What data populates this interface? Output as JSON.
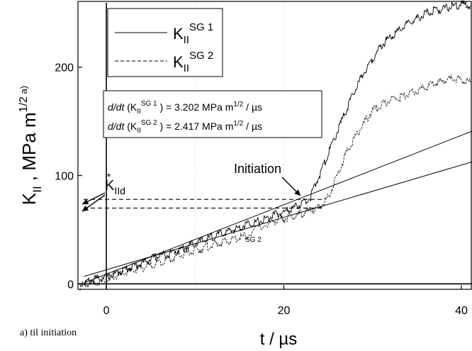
{
  "chart_data": {
    "type": "line",
    "xlabel": "t / µs",
    "ylabel_main": "K",
    "ylabel_sub": "II",
    "ylabel_unit": "MPa m",
    "ylabel_exp": "1/2",
    "ylabel_tag": "a)",
    "xlim": [
      -3.2,
      41.2
    ],
    "ylim": [
      -5,
      262
    ],
    "x_ticks": [
      0,
      20,
      40
    ],
    "y_ticks": [
      0,
      100,
      200
    ],
    "legend": [
      {
        "main": "K",
        "sub": "II",
        "sup": "SG 1",
        "style": "solid"
      },
      {
        "main": "K",
        "sub": "II",
        "sup": "SG 2",
        "style": "dashed"
      }
    ],
    "rate_annotations": [
      {
        "prefix": "d/dt",
        "open": " (K",
        "sub": "II",
        "sup": "SG 1",
        "rest": "  ) = 3.202 MPa m",
        "exp": "1/2",
        "tail": " / µs"
      },
      {
        "prefix": "d/dt",
        "open": " (K",
        "sub": "II",
        "sup": "SG 2",
        "rest": "  ) = 2.417 MPa m",
        "exp": "1/2",
        "tail": " / µs"
      }
    ],
    "kiid": {
      "main": "K",
      "sub": "IId",
      "sup": "*"
    },
    "initiation_label": "Initiation",
    "sg2_label": "SG 2",
    "fit_lines": [
      {
        "name": "SG 1",
        "slope": 3.202,
        "intercept": 9
      },
      {
        "name": "SG 2",
        "slope": 2.417,
        "intercept": 13
      }
    ],
    "threshold_levels": [
      78,
      70
    ],
    "series": [
      {
        "name": "SG 1",
        "style": "solid",
        "x": [
          -3,
          -2,
          -1,
          0,
          1,
          2,
          3,
          4,
          5,
          6,
          7,
          8,
          9,
          10,
          11,
          12,
          13,
          14,
          15,
          16,
          17,
          18,
          19,
          20,
          21,
          22,
          23,
          24,
          25,
          26,
          27,
          28,
          29,
          30,
          31,
          32,
          33,
          34,
          35,
          36,
          37,
          38,
          39,
          40,
          41
        ],
        "y": [
          0,
          2,
          5,
          6,
          9,
          13,
          16,
          19,
          23,
          26,
          28,
          31,
          34,
          38,
          40,
          44,
          46,
          49,
          52,
          56,
          57,
          60,
          64,
          66,
          70,
          74,
          80,
          100,
          120,
          140,
          160,
          178,
          195,
          208,
          220,
          228,
          234,
          240,
          245,
          250,
          252,
          254,
          256,
          258,
          257
        ]
      },
      {
        "name": "SG 2",
        "style": "dashed",
        "x": [
          -3,
          -2,
          -1,
          0,
          1,
          2,
          3,
          4,
          5,
          6,
          7,
          8,
          9,
          10,
          11,
          12,
          13,
          14,
          15,
          16,
          18,
          19,
          20,
          21,
          22,
          23,
          24,
          25,
          26,
          27,
          28,
          29,
          30,
          31,
          32,
          33,
          34,
          35,
          36,
          37,
          38,
          39,
          40,
          41
        ],
        "y": [
          -2,
          0,
          2,
          4,
          7,
          10,
          12,
          15,
          17,
          20,
          23,
          25,
          28,
          31,
          33,
          36,
          38,
          40,
          43,
          45,
          55,
          58,
          60,
          62,
          65,
          68,
          70,
          80,
          100,
          120,
          135,
          148,
          160,
          165,
          170,
          172,
          175,
          178,
          182,
          185,
          188,
          190,
          188,
          186
        ]
      }
    ]
  },
  "caption": "a) til initiation"
}
